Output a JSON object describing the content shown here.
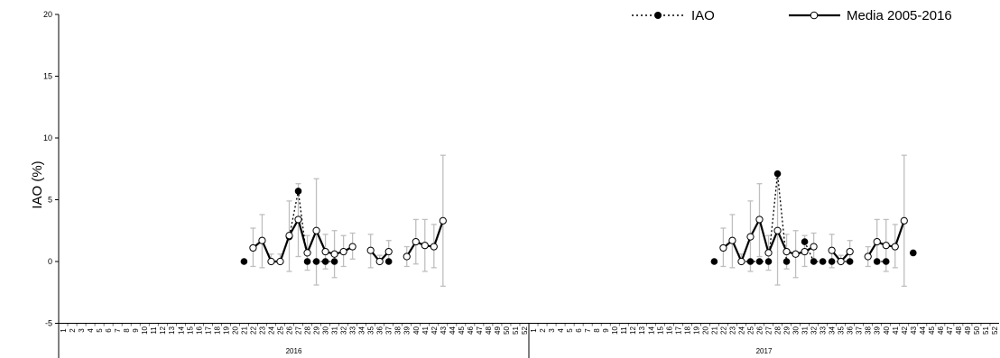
{
  "chart_data": {
    "type": "line",
    "ylabel": "IAO (%)",
    "ylim": [
      -5,
      20
    ],
    "yticks": [
      "-5",
      "0",
      "5",
      "10",
      "15",
      "20"
    ],
    "years": [
      "2016",
      "2017"
    ],
    "weeks_per_year": 52,
    "week_labels": [
      "1",
      "2",
      "3",
      "4",
      "5",
      "6",
      "7",
      "8",
      "9",
      "10",
      "11",
      "12",
      "13",
      "14",
      "15",
      "16",
      "17",
      "18",
      "19",
      "20",
      "21",
      "22",
      "23",
      "24",
      "25",
      "26",
      "27",
      "28",
      "29",
      "30",
      "31",
      "32",
      "33",
      "34",
      "35",
      "36",
      "37",
      "38",
      "39",
      "40",
      "41",
      "42",
      "43",
      "44",
      "45",
      "46",
      "47",
      "48",
      "49",
      "50",
      "51",
      "52"
    ],
    "legend": {
      "position": "top-right",
      "iao": "IAO",
      "media": "Media 2005-2016"
    },
    "series": [
      {
        "name": "IAO",
        "style": "dotted-filled",
        "color": "#000000",
        "segments": [
          [
            [
              2016,
              21,
              0
            ],
            [
              2016,
              22,
              null
            ],
            [
              2016,
              23,
              null
            ],
            [
              2016,
              24,
              0
            ],
            [
              2016,
              25,
              0
            ],
            [
              2016,
              26,
              2
            ],
            [
              2016,
              27,
              5.7
            ],
            [
              2016,
              28,
              0
            ],
            [
              2016,
              29,
              0
            ],
            [
              2016,
              30,
              0
            ],
            [
              2016,
              31,
              0
            ]
          ],
          [
            [
              2016,
              37,
              0
            ]
          ],
          [
            [
              2017,
              21,
              0
            ]
          ],
          [
            [
              2017,
              24,
              0
            ],
            [
              2017,
              25,
              0
            ],
            [
              2017,
              26,
              0
            ],
            [
              2017,
              27,
              0
            ],
            [
              2017,
              28,
              7.1
            ],
            [
              2017,
              29,
              0
            ]
          ],
          [
            [
              2017,
              31,
              1.6
            ],
            [
              2017,
              32,
              0
            ],
            [
              2017,
              33,
              0
            ],
            [
              2017,
              34,
              0
            ],
            [
              2017,
              35,
              0
            ],
            [
              2017,
              36,
              0
            ]
          ],
          [
            [
              2017,
              39,
              0
            ],
            [
              2017,
              40,
              0
            ]
          ],
          [
            [
              2017,
              43,
              0.7
            ]
          ]
        ]
      },
      {
        "name": "Media 2005-2016",
        "style": "solid-open",
        "color": "#000000",
        "segments": [
          [
            [
              2016,
              22,
              1.1
            ],
            [
              2016,
              23,
              1.7
            ],
            [
              2016,
              24,
              0
            ],
            [
              2016,
              25,
              0
            ],
            [
              2016,
              26,
              2.1
            ],
            [
              2016,
              27,
              3.4
            ],
            [
              2016,
              28,
              0.7
            ],
            [
              2016,
              29,
              2.5
            ],
            [
              2016,
              30,
              0.8
            ],
            [
              2016,
              31,
              0.6
            ],
            [
              2016,
              32,
              0.8
            ],
            [
              2016,
              33,
              1.2
            ]
          ],
          [
            [
              2016,
              35,
              0.9
            ],
            [
              2016,
              36,
              0
            ],
            [
              2016,
              37,
              0.8
            ]
          ],
          [
            [
              2016,
              39,
              0.4
            ],
            [
              2016,
              40,
              1.6
            ],
            [
              2016,
              41,
              1.3
            ],
            [
              2016,
              42,
              1.2
            ],
            [
              2016,
              43,
              3.3
            ]
          ],
          [
            [
              2017,
              22,
              1.1
            ],
            [
              2017,
              23,
              1.7
            ],
            [
              2017,
              24,
              0
            ],
            [
              2017,
              25,
              2.0
            ],
            [
              2017,
              26,
              3.4
            ],
            [
              2017,
              27,
              0.7
            ],
            [
              2017,
              28,
              2.5
            ],
            [
              2017,
              29,
              0.8
            ],
            [
              2017,
              30,
              0.6
            ],
            [
              2017,
              31,
              0.8
            ],
            [
              2017,
              32,
              1.2
            ]
          ],
          [
            [
              2017,
              34,
              0.9
            ],
            [
              2017,
              35,
              0
            ],
            [
              2017,
              36,
              0.8
            ]
          ],
          [
            [
              2017,
              38,
              0.4
            ],
            [
              2017,
              39,
              1.6
            ],
            [
              2017,
              40,
              1.3
            ],
            [
              2017,
              41,
              1.2
            ],
            [
              2017,
              42,
              3.3
            ]
          ]
        ]
      }
    ],
    "error_bars": [
      [
        2016,
        22,
        -0.4,
        2.7
      ],
      [
        2016,
        23,
        -0.5,
        3.8
      ],
      [
        2016,
        24,
        0,
        0.6
      ],
      [
        2016,
        25,
        0,
        0.6
      ],
      [
        2016,
        26,
        -0.8,
        4.9
      ],
      [
        2016,
        27,
        0.4,
        6.3
      ],
      [
        2016,
        28,
        -0.7,
        2.1
      ],
      [
        2016,
        29,
        -1.9,
        6.7
      ],
      [
        2016,
        30,
        -0.6,
        2.2
      ],
      [
        2016,
        31,
        -1.3,
        2.5
      ],
      [
        2016,
        32,
        -0.4,
        2.1
      ],
      [
        2016,
        33,
        0.2,
        2.3
      ],
      [
        2016,
        35,
        -0.5,
        2.2
      ],
      [
        2016,
        36,
        0,
        0.5
      ],
      [
        2016,
        37,
        -0.1,
        1.7
      ],
      [
        2016,
        39,
        -0.4,
        1.2
      ],
      [
        2016,
        40,
        -0.2,
        3.4
      ],
      [
        2016,
        41,
        -0.8,
        3.4
      ],
      [
        2016,
        42,
        -0.5,
        3.0
      ],
      [
        2016,
        43,
        -2.0,
        8.6
      ],
      [
        2017,
        22,
        -0.4,
        2.7
      ],
      [
        2017,
        23,
        -0.5,
        3.8
      ],
      [
        2017,
        24,
        0,
        0.6
      ],
      [
        2017,
        25,
        -0.8,
        4.9
      ],
      [
        2017,
        26,
        0.4,
        6.3
      ],
      [
        2017,
        27,
        -0.7,
        2.1
      ],
      [
        2017,
        28,
        -1.9,
        6.7
      ],
      [
        2017,
        29,
        -0.6,
        2.2
      ],
      [
        2017,
        30,
        -1.3,
        2.5
      ],
      [
        2017,
        31,
        -0.4,
        2.1
      ],
      [
        2017,
        32,
        0.2,
        2.3
      ],
      [
        2017,
        34,
        -0.5,
        2.2
      ],
      [
        2017,
        35,
        0,
        0.5
      ],
      [
        2017,
        36,
        -0.1,
        1.7
      ],
      [
        2017,
        38,
        -0.4,
        1.2
      ],
      [
        2017,
        39,
        -0.2,
        3.4
      ],
      [
        2017,
        40,
        -0.8,
        3.4
      ],
      [
        2017,
        41,
        -0.5,
        3.0
      ],
      [
        2017,
        42,
        -2.0,
        8.6
      ]
    ]
  }
}
